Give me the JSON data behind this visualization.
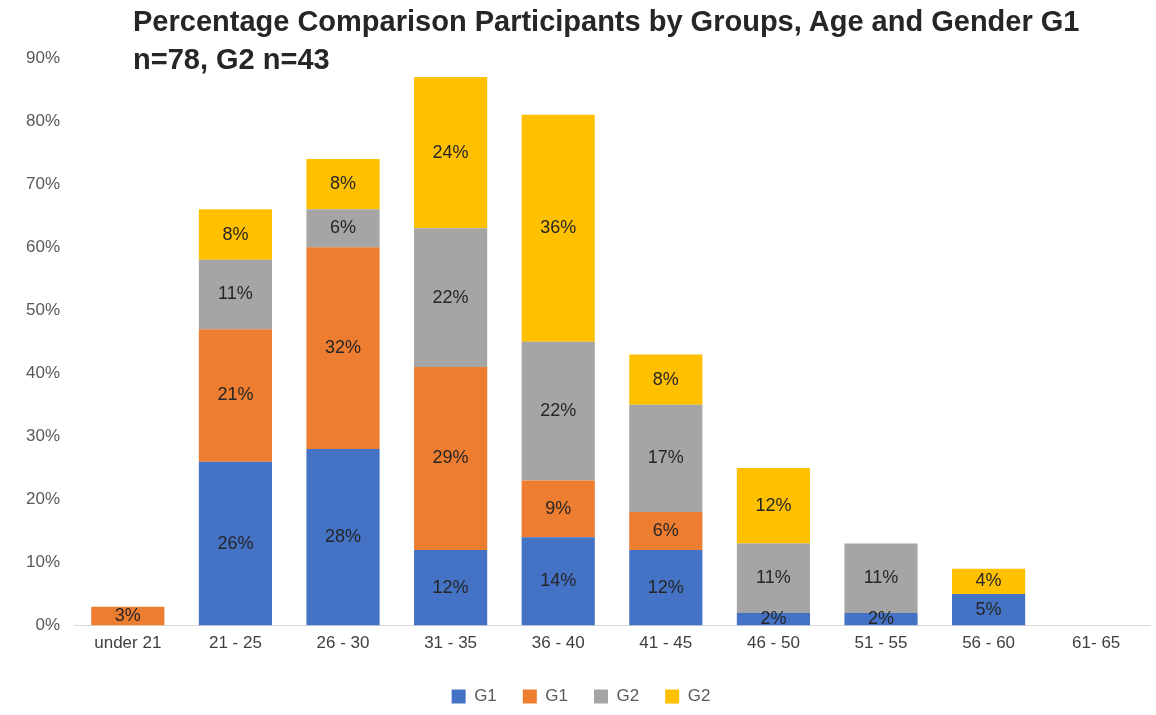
{
  "chart_data": {
    "type": "bar",
    "title": "Percentage Comparison Participants by Groups, Age and Gender G1 n=78, G2 n=43",
    "categories": [
      "under 21",
      "21 - 25",
      "26 - 30",
      "31 - 35",
      "36 - 40",
      "41 - 45",
      "46 - 50",
      "51 - 55",
      "56 - 60",
      "61- 65"
    ],
    "stacked": true,
    "series": [
      {
        "name": "G1",
        "color": "#4472c4",
        "values": [
          null,
          26,
          28,
          12,
          14,
          12,
          2,
          2,
          5,
          null
        ],
        "value_labels": [
          null,
          "26%",
          "28%",
          "12%",
          "14%",
          "12%",
          "2%",
          "2%",
          "5%",
          null
        ]
      },
      {
        "name": "G1",
        "color": "#ed7d31",
        "values": [
          3,
          21,
          32,
          29,
          9,
          6,
          null,
          null,
          null,
          null
        ],
        "value_labels": [
          "3%",
          "21%",
          "32%",
          "29%",
          "9%",
          "6%",
          null,
          null,
          null,
          null
        ]
      },
      {
        "name": "G2",
        "color": "#a5a5a5",
        "values": [
          null,
          11,
          6,
          22,
          22,
          17,
          11,
          11,
          null,
          null
        ],
        "value_labels": [
          null,
          "11%",
          "6%",
          "22%",
          "22%",
          "17%",
          "11%",
          "11%",
          null,
          null
        ]
      },
      {
        "name": "G2",
        "color": "#ffc000",
        "values": [
          null,
          8,
          8,
          24,
          36,
          8,
          12,
          null,
          4,
          null
        ],
        "value_labels": [
          null,
          "8%",
          "8%",
          "24%",
          "36%",
          "8%",
          "12%",
          null,
          "4%",
          null
        ]
      }
    ],
    "ylim": [
      0,
      90
    ],
    "yticks": [
      {
        "value": 0,
        "label": "0%"
      },
      {
        "value": 10,
        "label": "10%"
      },
      {
        "value": 20,
        "label": "20%"
      },
      {
        "value": 30,
        "label": "30%"
      },
      {
        "value": 40,
        "label": "40%"
      },
      {
        "value": 50,
        "label": "50%"
      },
      {
        "value": 60,
        "label": "60%"
      },
      {
        "value": 70,
        "label": "70%"
      },
      {
        "value": 80,
        "label": "80%"
      },
      {
        "value": 90,
        "label": "90%"
      }
    ],
    "legend": "bottom",
    "grid": false
  }
}
